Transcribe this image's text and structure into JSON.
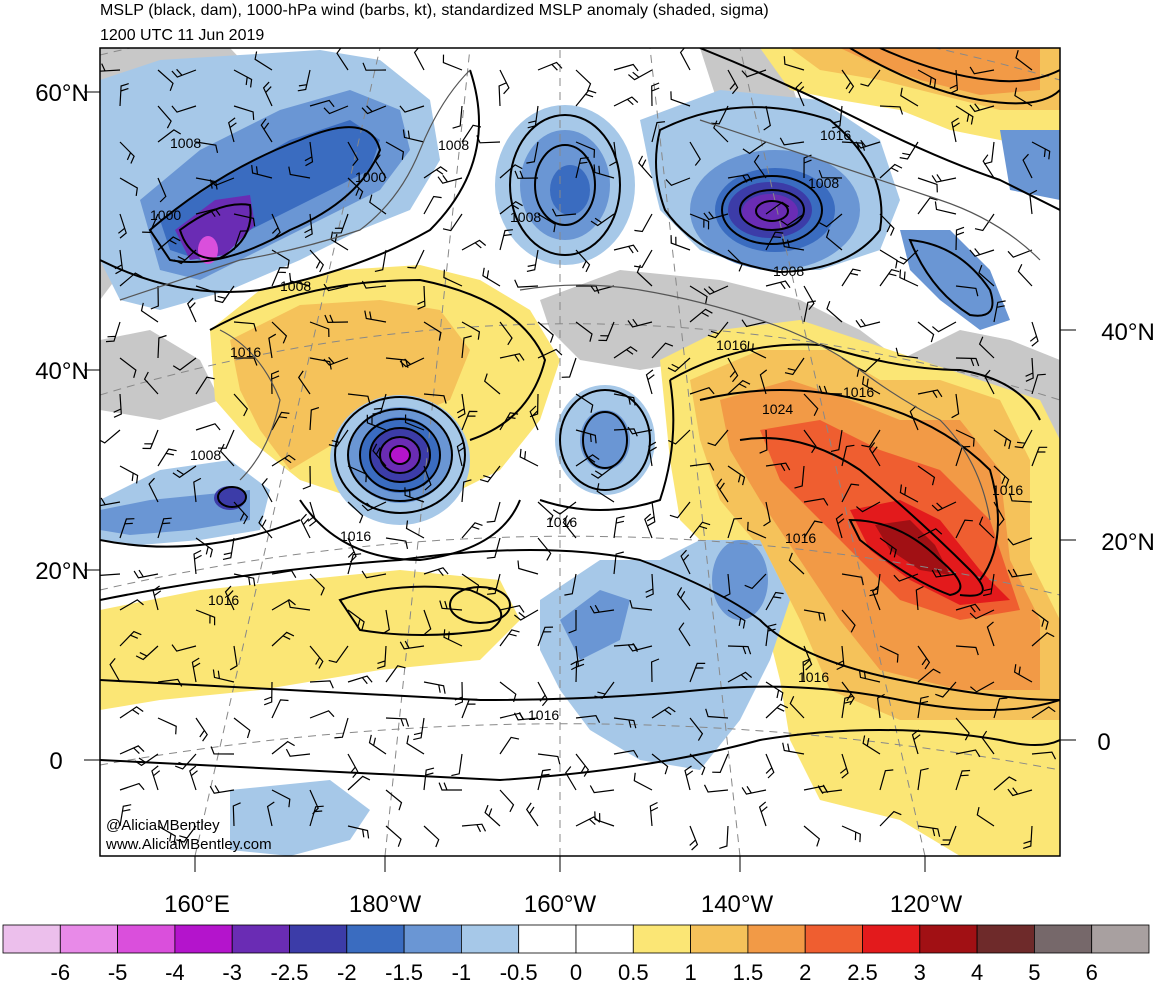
{
  "header": {
    "title": "MSLP (black, dam), 1000-hPa wind (barbs, kt), standardized MSLP anomaly (shaded, sigma)",
    "subtitle": "1200 UTC 11 Jun 2019"
  },
  "map": {
    "left_lat_labels": [
      "60°N",
      "40°N",
      "20°N",
      "0"
    ],
    "right_lat_labels": [
      "40°N",
      "20°N",
      "0"
    ],
    "lon_labels": [
      "160°E",
      "180°W",
      "160°W",
      "140°W",
      "120°W"
    ],
    "contour_labels": [
      "1008",
      "1008",
      "1000",
      "1000",
      "1008",
      "1008",
      "1008",
      "1016",
      "1008",
      "1008",
      "1016",
      "1016",
      "1024",
      "1016",
      "1008",
      "1016",
      "1016",
      "1016",
      "1016",
      "1016",
      "1016",
      "1016"
    ],
    "credits": [
      "@AliciaMBentley",
      "www.AliciaMBentley.com"
    ]
  },
  "colorbar": {
    "labels": [
      "-6",
      "-5",
      "-4",
      "-3",
      "-2.5",
      "-2",
      "-1.5",
      "-1",
      "-0.5",
      "0",
      "0.5",
      "1",
      "1.5",
      "2",
      "2.5",
      "3",
      "4",
      "5",
      "6"
    ],
    "colors": [
      "#ecbfec",
      "#e88ae8",
      "#da4fdc",
      "#b414cc",
      "#6a2cb4",
      "#3c3ca8",
      "#3a6cc0",
      "#6a96d4",
      "#a6c8e8",
      "#ffffff",
      "#ffffff",
      "#fbe675",
      "#f5c25a",
      "#f29a46",
      "#ef5e30",
      "#e31a1c",
      "#a11014",
      "#6e2a2a",
      "#76686a",
      "#a8a0a0"
    ]
  }
}
